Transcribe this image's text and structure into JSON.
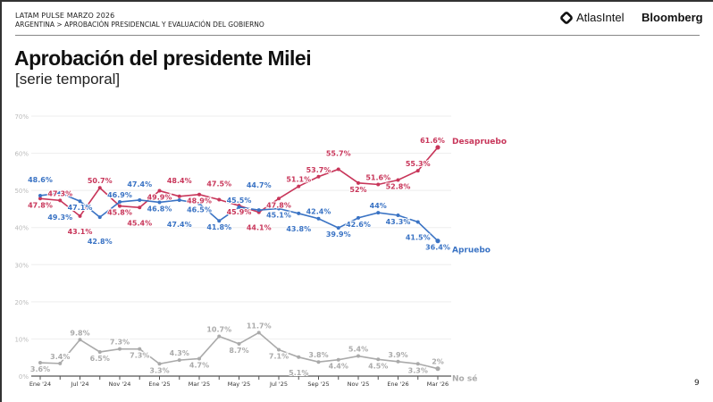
{
  "header": {
    "kicker": "LATAM PULSE MARZO 2026",
    "breadcrumb": "ARGENTINA > APROBACIÓN PRESIDENCIAL Y EVALUACIÓN DEL GOBIERNO",
    "logos": [
      "AtlasIntel",
      "Bloomberg"
    ]
  },
  "page_number": "9",
  "chart_data": {
    "type": "line",
    "title": "Aprobación del presidente Milei",
    "subtitle": "[serie temporal]",
    "xlabel": "",
    "ylabel": "",
    "ylim": [
      0,
      70
    ],
    "yticks": [
      "0%",
      "10%",
      "20%",
      "30%",
      "40%",
      "50%",
      "60%",
      "70%"
    ],
    "grid": true,
    "x_tick_labels": [
      "Ene '24",
      "",
      "Jul '24",
      "",
      "Nov '24",
      "",
      "Ene '25",
      "",
      "Mar '25",
      "",
      "May '25",
      "",
      "Jul '25",
      "",
      "Sep '25",
      "",
      "Nov '25",
      "",
      "Ene '26",
      "",
      "Mar '26"
    ],
    "series": [
      {
        "name": "Desapruebo",
        "color": "#c8365a",
        "values": [
          47.8,
          47.3,
          43.1,
          50.7,
          45.8,
          45.4,
          49.9,
          48.4,
          48.9,
          47.5,
          45.9,
          44.1,
          47.8,
          51.1,
          53.7,
          55.7,
          52,
          51.6,
          52.8,
          55.3,
          61.6
        ],
        "labels": [
          "47.8%",
          "47.3%",
          "43.1%",
          "50.7%",
          "45.8%",
          "45.4%",
          "49.9%",
          "48.4%",
          "48.9%",
          "47.5%",
          "45.9%",
          "44.1%",
          "47.8%",
          "51.1%",
          "53.7%",
          "55.7%",
          "52%",
          "51.6%",
          "52.8%",
          "55.3%",
          "61.6%"
        ]
      },
      {
        "name": "Apruebo",
        "color": "#3a73c4",
        "values": [
          48.6,
          49.3,
          47.1,
          42.8,
          46.9,
          47.4,
          46.8,
          47.4,
          46.5,
          41.8,
          45.5,
          44.7,
          45.1,
          43.8,
          42.4,
          39.9,
          42.6,
          44,
          43.3,
          41.5,
          36.4
        ],
        "labels": [
          "48.6%",
          "49.3%",
          "47.1%",
          "42.8%",
          "46.9%",
          "47.4%",
          "46.8%",
          "47.4%",
          "46.5%",
          "41.8%",
          "45.5%",
          "44.7%",
          "45.1%",
          "43.8%",
          "42.4%",
          "39.9%",
          "42.6%",
          "44%",
          "43.3%",
          "41.5%",
          "36.4%"
        ]
      },
      {
        "name": "No sé",
        "color": "#aaaaaa",
        "values": [
          3.6,
          3.4,
          9.8,
          6.5,
          7.3,
          7.3,
          3.3,
          4.3,
          4.7,
          10.7,
          8.7,
          11.7,
          7.1,
          5.1,
          3.8,
          4.4,
          5.4,
          4.5,
          3.9,
          3.3,
          2
        ],
        "labels": [
          "3.6%",
          "3.4%",
          "9.8%",
          "6.5%",
          "7.3%",
          "7.3%",
          "3.3%",
          "4.3%",
          "4.7%",
          "10.7%",
          "8.7%",
          "11.7%",
          "7.1%",
          "5.1%",
          "3.8%",
          "4.4%",
          "5.4%",
          "4.5%",
          "3.9%",
          "3.3%",
          "2%"
        ]
      }
    ]
  }
}
